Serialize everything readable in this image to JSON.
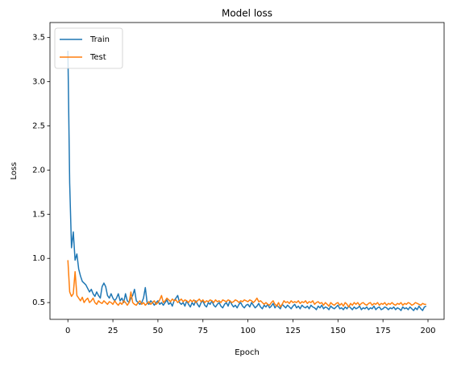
{
  "chart_data": {
    "type": "line",
    "title": "Model loss",
    "x_label": "Epoch",
    "y_label": "Loss",
    "x": [
      0,
      1,
      2,
      3,
      4,
      5,
      6,
      7,
      8,
      9,
      10,
      11,
      12,
      13,
      14,
      15,
      16,
      17,
      18,
      19,
      20,
      21,
      22,
      23,
      24,
      25,
      26,
      27,
      28,
      29,
      30,
      31,
      32,
      33,
      34,
      35,
      36,
      37,
      38,
      39,
      40,
      41,
      42,
      43,
      44,
      45,
      46,
      47,
      48,
      49,
      50,
      51,
      52,
      53,
      54,
      55,
      56,
      57,
      58,
      59,
      60,
      61,
      62,
      63,
      64,
      65,
      66,
      67,
      68,
      69,
      70,
      71,
      72,
      73,
      74,
      75,
      76,
      77,
      78,
      79,
      80,
      81,
      82,
      83,
      84,
      85,
      86,
      87,
      88,
      89,
      90,
      91,
      92,
      93,
      94,
      95,
      96,
      97,
      98,
      99,
      100,
      101,
      102,
      103,
      104,
      105,
      106,
      107,
      108,
      109,
      110,
      111,
      112,
      113,
      114,
      115,
      116,
      117,
      118,
      119,
      120,
      121,
      122,
      123,
      124,
      125,
      126,
      127,
      128,
      129,
      130,
      131,
      132,
      133,
      134,
      135,
      136,
      137,
      138,
      139,
      140,
      141,
      142,
      143,
      144,
      145,
      146,
      147,
      148,
      149,
      150,
      151,
      152,
      153,
      154,
      155,
      156,
      157,
      158,
      159,
      160,
      161,
      162,
      163,
      164,
      165,
      166,
      167,
      168,
      169,
      170,
      171,
      172,
      173,
      174,
      175,
      176,
      177,
      178,
      179,
      180,
      181,
      182,
      183,
      184,
      185,
      186,
      187,
      188,
      189,
      190,
      191,
      192,
      193,
      194,
      195,
      196,
      197,
      198,
      199
    ],
    "series": [
      {
        "name": "Train",
        "color": "#1f77b4",
        "values": [
          3.35,
          1.85,
          1.12,
          1.3,
          0.98,
          1.05,
          0.88,
          0.8,
          0.74,
          0.72,
          0.7,
          0.66,
          0.62,
          0.65,
          0.6,
          0.57,
          0.62,
          0.58,
          0.55,
          0.68,
          0.72,
          0.68,
          0.58,
          0.55,
          0.6,
          0.55,
          0.52,
          0.55,
          0.6,
          0.52,
          0.55,
          0.5,
          0.6,
          0.52,
          0.5,
          0.55,
          0.58,
          0.65,
          0.52,
          0.5,
          0.48,
          0.5,
          0.55,
          0.67,
          0.5,
          0.48,
          0.52,
          0.5,
          0.47,
          0.5,
          0.52,
          0.48,
          0.5,
          0.47,
          0.5,
          0.53,
          0.48,
          0.5,
          0.46,
          0.52,
          0.55,
          0.58,
          0.5,
          0.48,
          0.5,
          0.46,
          0.52,
          0.48,
          0.45,
          0.5,
          0.47,
          0.52,
          0.48,
          0.45,
          0.5,
          0.52,
          0.47,
          0.45,
          0.5,
          0.48,
          0.52,
          0.47,
          0.45,
          0.48,
          0.5,
          0.46,
          0.44,
          0.48,
          0.5,
          0.46,
          0.52,
          0.48,
          0.45,
          0.47,
          0.44,
          0.48,
          0.5,
          0.46,
          0.44,
          0.47,
          0.48,
          0.45,
          0.5,
          0.47,
          0.44,
          0.46,
          0.49,
          0.45,
          0.43,
          0.47,
          0.45,
          0.48,
          0.44,
          0.46,
          0.49,
          0.44,
          0.47,
          0.45,
          0.43,
          0.48,
          0.46,
          0.44,
          0.47,
          0.45,
          0.43,
          0.46,
          0.48,
          0.44,
          0.46,
          0.43,
          0.47,
          0.45,
          0.44,
          0.46,
          0.43,
          0.47,
          0.45,
          0.44,
          0.42,
          0.46,
          0.44,
          0.47,
          0.43,
          0.45,
          0.44,
          0.42,
          0.46,
          0.44,
          0.43,
          0.45,
          0.47,
          0.43,
          0.44,
          0.42,
          0.45,
          0.43,
          0.46,
          0.44,
          0.42,
          0.45,
          0.43,
          0.44,
          0.46,
          0.42,
          0.44,
          0.43,
          0.45,
          0.42,
          0.44,
          0.43,
          0.46,
          0.42,
          0.44,
          0.45,
          0.42,
          0.43,
          0.45,
          0.44,
          0.42,
          0.44,
          0.43,
          0.45,
          0.42,
          0.44,
          0.43,
          0.41,
          0.45,
          0.43,
          0.44,
          0.42,
          0.45,
          0.43,
          0.41,
          0.44,
          0.42,
          0.46,
          0.43,
          0.41,
          0.45,
          0.46
        ]
      },
      {
        "name": "Test",
        "color": "#ff7f0e",
        "values": [
          0.98,
          0.62,
          0.57,
          0.6,
          0.85,
          0.58,
          0.55,
          0.52,
          0.56,
          0.5,
          0.53,
          0.55,
          0.5,
          0.52,
          0.55,
          0.5,
          0.48,
          0.52,
          0.5,
          0.49,
          0.52,
          0.5,
          0.48,
          0.51,
          0.5,
          0.48,
          0.52,
          0.49,
          0.47,
          0.5,
          0.48,
          0.52,
          0.5,
          0.47,
          0.5,
          0.62,
          0.5,
          0.48,
          0.47,
          0.5,
          0.52,
          0.48,
          0.5,
          0.47,
          0.49,
          0.51,
          0.48,
          0.5,
          0.52,
          0.48,
          0.5,
          0.53,
          0.58,
          0.5,
          0.52,
          0.55,
          0.53,
          0.51,
          0.54,
          0.52,
          0.53,
          0.5,
          0.52,
          0.54,
          0.51,
          0.53,
          0.52,
          0.5,
          0.53,
          0.51,
          0.53,
          0.5,
          0.52,
          0.54,
          0.51,
          0.53,
          0.5,
          0.52,
          0.51,
          0.53,
          0.52,
          0.5,
          0.53,
          0.51,
          0.52,
          0.5,
          0.53,
          0.52,
          0.51,
          0.53,
          0.52,
          0.5,
          0.51,
          0.53,
          0.52,
          0.5,
          0.52,
          0.51,
          0.53,
          0.52,
          0.51,
          0.53,
          0.52,
          0.5,
          0.52,
          0.55,
          0.51,
          0.52,
          0.5,
          0.48,
          0.5,
          0.48,
          0.47,
          0.5,
          0.52,
          0.48,
          0.46,
          0.5,
          0.45,
          0.48,
          0.52,
          0.5,
          0.51,
          0.49,
          0.52,
          0.5,
          0.51,
          0.5,
          0.52,
          0.49,
          0.51,
          0.5,
          0.52,
          0.49,
          0.51,
          0.5,
          0.52,
          0.48,
          0.5,
          0.51,
          0.49,
          0.5,
          0.47,
          0.5,
          0.48,
          0.46,
          0.5,
          0.48,
          0.47,
          0.49,
          0.5,
          0.47,
          0.49,
          0.46,
          0.5,
          0.48,
          0.45,
          0.49,
          0.47,
          0.5,
          0.48,
          0.5,
          0.47,
          0.49,
          0.5,
          0.48,
          0.47,
          0.49,
          0.5,
          0.47,
          0.49,
          0.48,
          0.5,
          0.47,
          0.49,
          0.48,
          0.5,
          0.47,
          0.49,
          0.48,
          0.5,
          0.48,
          0.47,
          0.49,
          0.48,
          0.5,
          0.47,
          0.49,
          0.48,
          0.5,
          0.49,
          0.47,
          0.48,
          0.5,
          0.49,
          0.48,
          0.47,
          0.49,
          0.48,
          0.48
        ]
      }
    ],
    "xlim": [
      -9.95,
      208.95
    ],
    "xticks": [
      0,
      25,
      50,
      75,
      100,
      125,
      150,
      175,
      200
    ],
    "ylim": [
      0.31,
      3.67
    ],
    "yticks": [
      0.5,
      {
        "value": 1,
        "label": "1.0"
      },
      1.5,
      {
        "value": 2,
        "label": "2.0"
      },
      2.5,
      {
        "value": 3,
        "label": "3.0"
      },
      3.5
    ],
    "grid": false,
    "legend": "upper left"
  }
}
